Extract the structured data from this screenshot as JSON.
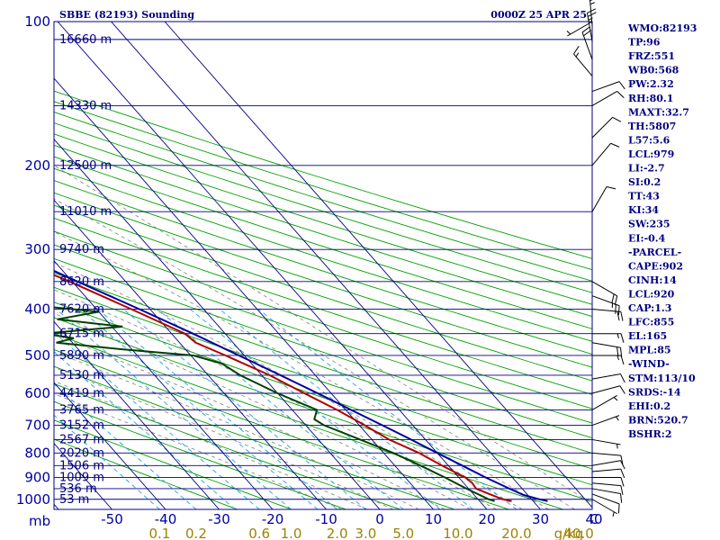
{
  "header": {
    "station": "SBBE (82193) Sounding",
    "time": "0000Z 25 APR 25"
  },
  "colors": {
    "frame": "#000080",
    "isobar": "#000080",
    "isotherm": "#000080",
    "dry_adiabat": "#00a000",
    "moist_adiabat": "#808080",
    "mixing_ratio": "#20a0e0",
    "temperature": "#b00000",
    "dewpoint": "#004000",
    "parcel": "#0000a0",
    "wind_barb": "#000000"
  },
  "indices": [
    "WMO:82193",
    "TP:96",
    "FRZ:551",
    "WB0:568",
    "PW:2.32",
    "RH:80.1",
    "MAXT:32.7",
    "TH:5807",
    "L57:5.6",
    "LCL:979",
    "LI:-2.7",
    "SI:0.2",
    "TT:43",
    "KI:34",
    "SW:235",
    "EI:-0.4",
    "-PARCEL-",
    "CAPE:902",
    "CINH:14",
    "LCL:920",
    "CAP:1.3",
    "LFC:855",
    "EL:165",
    "MPL:85",
    "-WIND-",
    "STM:113/10",
    "SRDS:-14",
    "EHI:0.2",
    "BRN:520.7",
    "BSHR:2"
  ],
  "chart_data": {
    "type": "skew-t",
    "x_unit_label": "C",
    "y_unit_label": "mb",
    "mixing_ratio_unit_label": "g/kg",
    "pressure_ticks": [
      {
        "p": 100,
        "label": "100"
      },
      {
        "p": 200,
        "label": "200"
      },
      {
        "p": 300,
        "label": "300"
      },
      {
        "p": 400,
        "label": "400"
      },
      {
        "p": 500,
        "label": "500"
      },
      {
        "p": 600,
        "label": "600"
      },
      {
        "p": 700,
        "label": "700"
      },
      {
        "p": 800,
        "label": "800"
      },
      {
        "p": 900,
        "label": "900"
      },
      {
        "p": 1000,
        "label": "1000"
      }
    ],
    "height_levels": [
      {
        "p": 109,
        "label": "16660 m"
      },
      {
        "p": 150,
        "label": "14330 m"
      },
      {
        "p": 200,
        "label": "12500 m"
      },
      {
        "p": 250,
        "label": "11010 m"
      },
      {
        "p": 300,
        "label": "9740 m"
      },
      {
        "p": 350,
        "label": "8620 m"
      },
      {
        "p": 400,
        "label": "7620 m"
      },
      {
        "p": 450,
        "label": "6715 m"
      },
      {
        "p": 500,
        "label": "5890 m"
      },
      {
        "p": 550,
        "label": "5130 m"
      },
      {
        "p": 600,
        "label": "4419 m"
      },
      {
        "p": 650,
        "label": "3765 m"
      },
      {
        "p": 700,
        "label": "3152 m"
      },
      {
        "p": 750,
        "label": "2567 m"
      },
      {
        "p": 800,
        "label": "2020 m"
      },
      {
        "p": 850,
        "label": "1506 m"
      },
      {
        "p": 900,
        "label": "1009 m"
      },
      {
        "p": 950,
        "label": "536 m"
      },
      {
        "p": 1000,
        "label": "53 m"
      }
    ],
    "temperature_ticks": [
      {
        "t": -50,
        "label": "-50"
      },
      {
        "t": -40,
        "label": "-40"
      },
      {
        "t": -30,
        "label": "-30"
      },
      {
        "t": -20,
        "label": "-20"
      },
      {
        "t": -10,
        "label": "-10"
      },
      {
        "t": 0,
        "label": "0"
      },
      {
        "t": 10,
        "label": "10"
      },
      {
        "t": 20,
        "label": "20"
      },
      {
        "t": 30,
        "label": "30"
      },
      {
        "t": 40,
        "label": "40"
      }
    ],
    "mixing_ratio_ticks": [
      {
        "w": 0.1,
        "label": "0.1"
      },
      {
        "w": 0.2,
        "label": "0.2"
      },
      {
        "w": 0.6,
        "label": "0.6"
      },
      {
        "w": 1.0,
        "label": "1.0"
      },
      {
        "w": 2.0,
        "label": "2.0"
      },
      {
        "w": 3.0,
        "label": "3.0"
      },
      {
        "w": 5.0,
        "label": "5.0"
      },
      {
        "w": 10.0,
        "label": "10.0"
      },
      {
        "w": 20.0,
        "label": "20.0"
      },
      {
        "w": 40.0,
        "label": "40.0"
      }
    ],
    "isotherms": [
      -130,
      -120,
      -110,
      -100,
      -90,
      -80,
      -70,
      -60,
      -50,
      -40,
      -30,
      -20,
      -10,
      0,
      10,
      20,
      30,
      40
    ],
    "dry_adiabats_theta_C": [
      -30,
      -20,
      -10,
      0,
      10,
      20,
      30,
      40,
      50,
      60,
      70,
      80,
      90,
      100,
      110,
      120,
      130,
      140,
      150,
      160,
      170,
      180,
      190,
      200,
      210,
      220
    ],
    "moist_adiabats_thetaw_C": [
      -10,
      -5,
      0,
      5,
      10,
      15,
      20,
      25,
      30,
      35,
      40
    ],
    "mixing_ratio_lines": [
      0.1,
      0.2,
      0.4,
      0.6,
      1.0,
      1.5,
      2.0,
      3.0,
      5.0,
      8.0,
      12.0,
      20.0
    ],
    "temperature_profile": [
      {
        "p": 1009,
        "t": 26.0
      },
      {
        "p": 1000,
        "t": 24.6
      },
      {
        "p": 975,
        "t": 23.0
      },
      {
        "p": 950,
        "t": 21.4
      },
      {
        "p": 925,
        "t": 21.6
      },
      {
        "p": 900,
        "t": 21.2
      },
      {
        "p": 850,
        "t": 18.8
      },
      {
        "p": 800,
        "t": 16.6
      },
      {
        "p": 750,
        "t": 13.2
      },
      {
        "p": 700,
        "t": 11.0
      },
      {
        "p": 650,
        "t": 8.4
      },
      {
        "p": 600,
        "t": 5.0
      },
      {
        "p": 550,
        "t": 1.5
      },
      {
        "p": 500,
        "t": -3.5
      },
      {
        "p": 470,
        "t": -7.0
      },
      {
        "p": 450,
        "t": -7.5
      },
      {
        "p": 400,
        "t": -13.5
      },
      {
        "p": 350,
        "t": -20.5
      },
      {
        "p": 300,
        "t": -29.5
      },
      {
        "p": 250,
        "t": -40.5
      },
      {
        "p": 225,
        "t": -45.5
      },
      {
        "p": 200,
        "t": -51.5
      },
      {
        "p": 175,
        "t": -58.5
      },
      {
        "p": 150,
        "t": -66.0
      },
      {
        "p": 125,
        "t": -74.0
      },
      {
        "p": 110,
        "t": -79.0
      },
      {
        "p": 100,
        "t": -81.5
      }
    ],
    "dewpoint_profile": [
      {
        "p": 1009,
        "td": 22.8
      },
      {
        "p": 1000,
        "td": 22.0
      },
      {
        "p": 950,
        "td": 19.6
      },
      {
        "p": 900,
        "td": 17.4
      },
      {
        "p": 850,
        "td": 14.8
      },
      {
        "p": 800,
        "td": 11.8
      },
      {
        "p": 750,
        "td": 7.8
      },
      {
        "p": 700,
        "td": 3.4
      },
      {
        "p": 680,
        "td": 2.6
      },
      {
        "p": 650,
        "td": 4.6
      },
      {
        "p": 600,
        "td": 0.0
      },
      {
        "p": 550,
        "td": -4.0
      },
      {
        "p": 520,
        "td": -5.5
      },
      {
        "p": 500,
        "td": -9.5
      },
      {
        "p": 485,
        "td": -22.0
      },
      {
        "p": 470,
        "td": -33.0
      },
      {
        "p": 460,
        "td": -29.0
      },
      {
        "p": 450,
        "td": -34.0
      },
      {
        "p": 435,
        "td": -18.0
      },
      {
        "p": 420,
        "td": -29.0
      },
      {
        "p": 405,
        "td": -20.0
      },
      {
        "p": 395,
        "td": -29.0
      },
      {
        "p": 385,
        "td": -33.0
      },
      {
        "p": 375,
        "td": -27.0
      },
      {
        "p": 365,
        "td": -34.0
      },
      {
        "p": 350,
        "td": -27.5
      },
      {
        "p": 330,
        "td": -37.0
      },
      {
        "p": 310,
        "td": -30.0
      },
      {
        "p": 300,
        "td": -43.0
      },
      {
        "p": 285,
        "td": -45.0
      },
      {
        "p": 270,
        "td": -54.0
      },
      {
        "p": 258,
        "td": -35.0
      },
      {
        "p": 240,
        "td": -54.0
      },
      {
        "p": 225,
        "td": -45.0
      },
      {
        "p": 212,
        "td": -60.0
      },
      {
        "p": 205,
        "td": -46.0
      },
      {
        "p": 195,
        "td": -60.0
      },
      {
        "p": 180,
        "td": -44.0
      },
      {
        "p": 172,
        "td": -56.0
      },
      {
        "p": 165,
        "td": -47.0
      },
      {
        "p": 155,
        "td": -57.0
      },
      {
        "p": 145,
        "td": -61.0
      },
      {
        "p": 135,
        "td": -65.0
      },
      {
        "p": 125,
        "td": -71.0
      },
      {
        "p": 115,
        "td": -73.0
      },
      {
        "p": 108,
        "td": -76.0
      },
      {
        "p": 100,
        "td": -80.0
      }
    ],
    "parcel_profile": [
      {
        "p": 1009,
        "t": 32.7
      },
      {
        "p": 1000,
        "t": 31.5
      },
      {
        "p": 979,
        "t": 29.2
      },
      {
        "p": 950,
        "t": 27.6
      },
      {
        "p": 900,
        "t": 25.0
      },
      {
        "p": 850,
        "t": 22.6
      },
      {
        "p": 800,
        "t": 20.0
      },
      {
        "p": 750,
        "t": 17.3
      },
      {
        "p": 700,
        "t": 14.3
      },
      {
        "p": 650,
        "t": 11.0
      },
      {
        "p": 600,
        "t": 7.5
      },
      {
        "p": 550,
        "t": 3.5
      },
      {
        "p": 500,
        "t": -1.0
      },
      {
        "p": 450,
        "t": -6.0
      },
      {
        "p": 400,
        "t": -12.0
      },
      {
        "p": 350,
        "t": -19.0
      },
      {
        "p": 300,
        "t": -27.0
      },
      {
        "p": 250,
        "t": -37.0
      },
      {
        "p": 200,
        "t": -49.0
      },
      {
        "p": 165,
        "t": -60.0
      },
      {
        "p": 150,
        "t": -65.5
      },
      {
        "p": 125,
        "t": -75.0
      },
      {
        "p": 100,
        "t": -87.0
      }
    ],
    "wind_barbs": [
      {
        "p": 1000,
        "dir": 120,
        "kt": 5
      },
      {
        "p": 975,
        "dir": 110,
        "kt": 10
      },
      {
        "p": 950,
        "dir": 100,
        "kt": 10
      },
      {
        "p": 925,
        "dir": 95,
        "kt": 10
      },
      {
        "p": 900,
        "dir": 90,
        "kt": 10
      },
      {
        "p": 875,
        "dir": 85,
        "kt": 10
      },
      {
        "p": 850,
        "dir": 80,
        "kt": 10
      },
      {
        "p": 800,
        "dir": 95,
        "kt": 10
      },
      {
        "p": 750,
        "dir": 100,
        "kt": 5
      },
      {
        "p": 700,
        "dir": 70,
        "kt": 5
      },
      {
        "p": 650,
        "dir": 60,
        "kt": 5
      },
      {
        "p": 600,
        "dir": 75,
        "kt": 10
      },
      {
        "p": 560,
        "dir": 80,
        "kt": 10
      },
      {
        "p": 500,
        "dir": 90,
        "kt": 15
      },
      {
        "p": 470,
        "dir": 100,
        "kt": 20
      },
      {
        "p": 450,
        "dir": 90,
        "kt": 15
      },
      {
        "p": 400,
        "dir": 95,
        "kt": 20
      },
      {
        "p": 375,
        "dir": 110,
        "kt": 25
      },
      {
        "p": 350,
        "dir": 120,
        "kt": 20
      },
      {
        "p": 250,
        "dir": 30,
        "kt": 10
      },
      {
        "p": 200,
        "dir": 40,
        "kt": 10
      },
      {
        "p": 175,
        "dir": 45,
        "kt": 10
      },
      {
        "p": 150,
        "dir": 60,
        "kt": 10
      },
      {
        "p": 140,
        "dir": 70,
        "kt": 10
      },
      {
        "p": 130,
        "dir": 320,
        "kt": 15
      },
      {
        "p": 120,
        "dir": 340,
        "kt": 20
      },
      {
        "p": 110,
        "dir": 350,
        "kt": 25
      },
      {
        "p": 102,
        "dir": 355,
        "kt": 25
      },
      {
        "p": 100,
        "dir": 240,
        "kt": 5
      }
    ]
  }
}
